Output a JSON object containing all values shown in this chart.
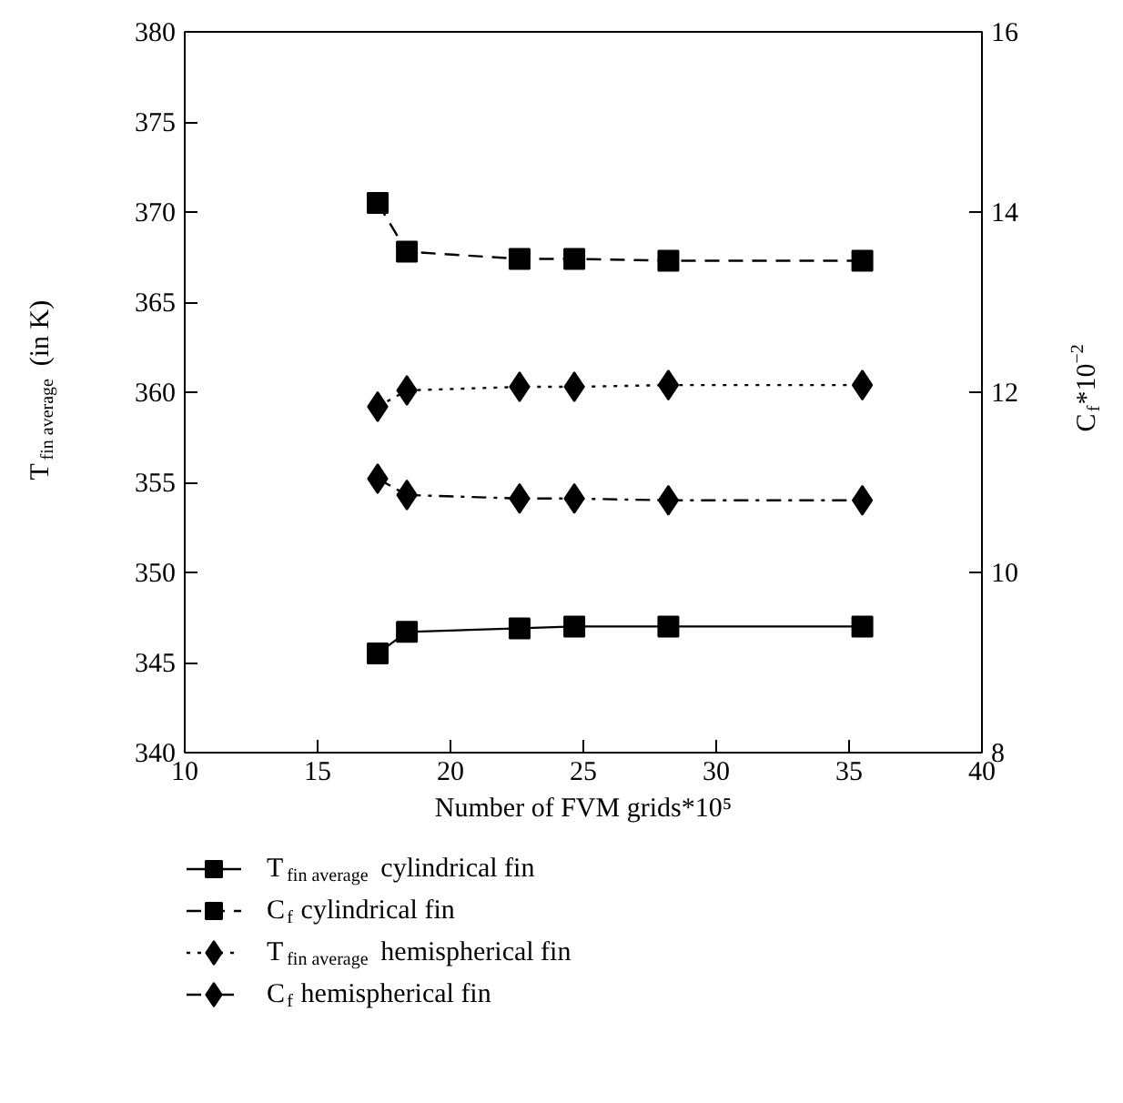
{
  "chart_data": {
    "type": "line",
    "xlabel": "Number of FVM grids*10⁵",
    "ylabel": "T$_{fin average}$ (in K)",
    "y2label": "C$_{f}$*10$^{−2}$",
    "x": [
      17.26,
      18.36,
      22.6,
      24.66,
      28.2,
      35.5
    ],
    "series": [
      {
        "name": "T$_{fin average}$ cylindrical fin",
        "color": "#000000",
        "marker": "square",
        "line_style": "solid",
        "values": [
          345.5,
          346.7,
          346.9,
          347.0,
          347.0,
          347.0
        ]
      },
      {
        "name": "C$_{f}$ cylindrical fin",
        "color": "#000000",
        "marker": "square",
        "line_style": "dashed",
        "axis": "y2",
        "values": [
          14.1,
          13.56,
          13.48,
          13.48,
          13.46,
          13.46
        ]
      },
      {
        "name": "T$_{fin average}$ hemispherical fin",
        "color": "#000000",
        "marker": "diamond",
        "line_style": "dotted",
        "values": [
          359.2,
          360.1,
          360.3,
          360.3,
          360.4,
          360.4
        ]
      },
      {
        "name": "C$_{f}$ hemispherical fin",
        "color": "#000000",
        "marker": "diamond",
        "line_style": "dashdot",
        "axis": "y2",
        "values": [
          11.04,
          10.86,
          10.82,
          10.82,
          10.8,
          10.8
        ]
      }
    ],
    "xlim": [
      10,
      40
    ],
    "xticks": [
      10,
      15,
      20,
      25,
      30,
      35,
      40
    ],
    "ylim": [
      340,
      380
    ],
    "yticks": [
      340,
      345,
      350,
      355,
      360,
      365,
      370,
      375,
      380
    ],
    "y2lim": [
      8,
      16
    ],
    "y2ticks": [
      8,
      10,
      12,
      14,
      16
    ],
    "grid": false,
    "legend": "bottom"
  }
}
